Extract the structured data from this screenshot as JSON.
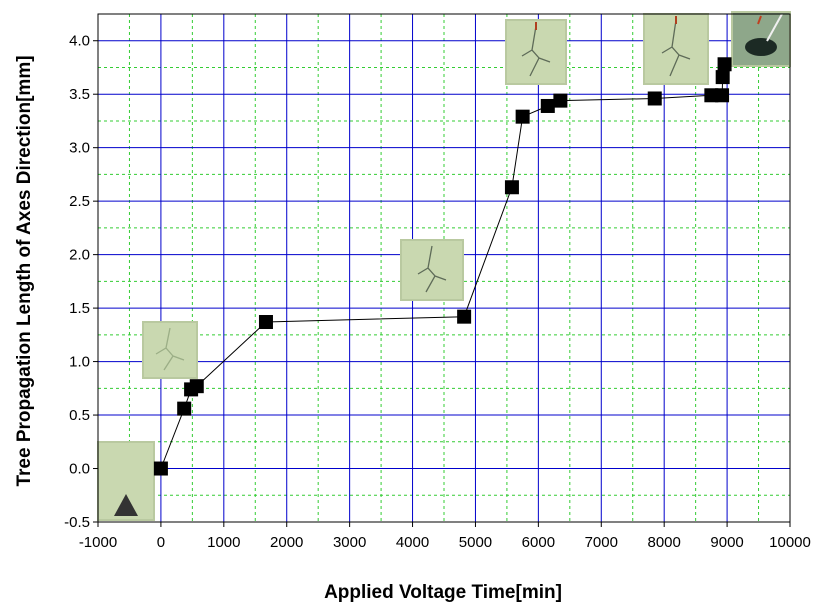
{
  "chart_data": {
    "type": "scatter",
    "title": "",
    "xlabel": "Applied Voltage Time[min]",
    "ylabel": "Tree Propagation Length of Axes Direction[mm]",
    "xlim": [
      -1000,
      10000
    ],
    "ylim": [
      -0.5,
      4.25
    ],
    "grid": true,
    "x_ticks": [
      "-1000",
      "0",
      "1000",
      "2000",
      "3000",
      "4000",
      "5000",
      "6000",
      "7000",
      "8000",
      "9000",
      "10000"
    ],
    "y_ticks": [
      "-0.5",
      "0.0",
      "0.5",
      "1.0",
      "1.5",
      "2.0",
      "2.5",
      "3.0",
      "3.5",
      "4.0"
    ],
    "series": [
      {
        "x": [
          0,
          370,
          480,
          570,
          1670,
          4820,
          5580,
          5750,
          6150,
          6350,
          7850,
          8750,
          8920,
          8930,
          8960
        ],
        "y": [
          0.0,
          0.56,
          0.74,
          0.77,
          1.37,
          1.42,
          2.63,
          3.29,
          3.39,
          3.44,
          3.46,
          3.49,
          3.49,
          3.66,
          3.78
        ]
      }
    ],
    "marker": "filled-square",
    "colors": {
      "grid_major": "#0000cc",
      "grid_minor": "#33cc33",
      "marker": "#000000",
      "line": "#000000",
      "inset_fill": "#c9d8b0"
    },
    "annotations": [
      {
        "type": "micrograph-inset",
        "near_x": -500,
        "content": "needle tip, no tree"
      },
      {
        "type": "micrograph-inset",
        "near_x": 150,
        "content": "small tree channel"
      },
      {
        "type": "micrograph-inset",
        "near_x": 4400,
        "content": "branched tree"
      },
      {
        "type": "micrograph-inset",
        "near_x": 5950,
        "content": "tree propagation"
      },
      {
        "type": "micrograph-inset",
        "near_x": 8300,
        "content": "long tree channel"
      },
      {
        "type": "micrograph-inset",
        "near_x": 9500,
        "content": "breakdown"
      }
    ]
  }
}
